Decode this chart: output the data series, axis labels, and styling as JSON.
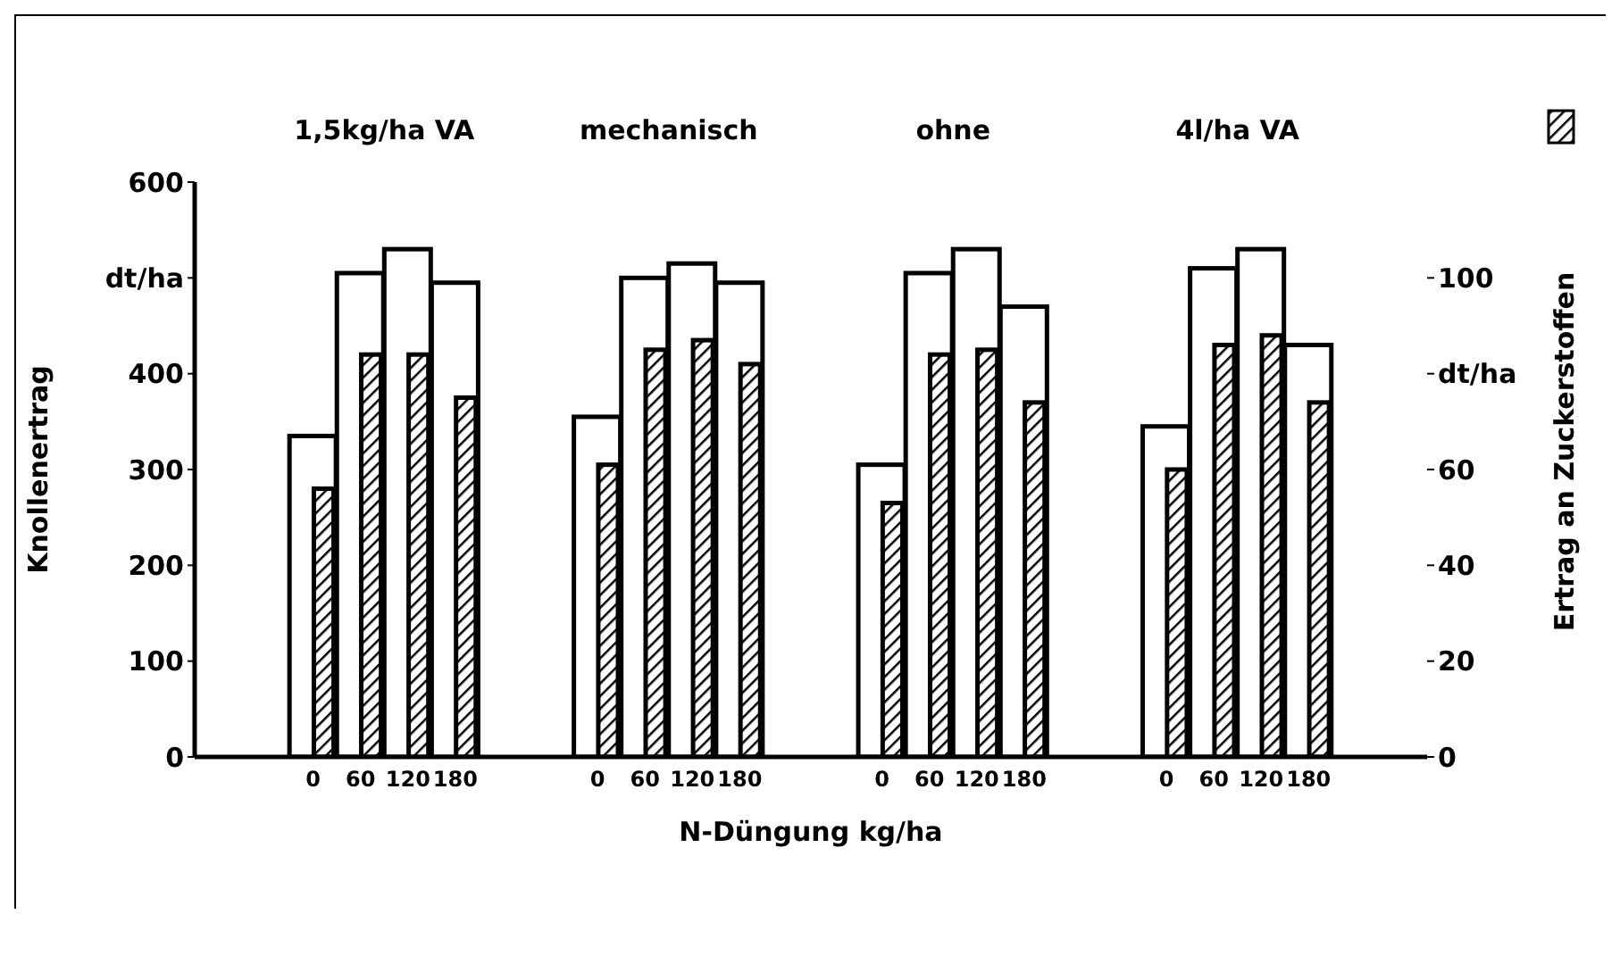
{
  "chart_data": {
    "type": "bar",
    "xlabel": "N-Düngung kg/ha",
    "ylabel": "Knollenertrag",
    "y2label": "Ertrag an Zuckerstoffen",
    "categories": [
      null,
      null,
      "0",
      "60",
      "120",
      "180",
      null,
      null,
      "0",
      "60",
      "120",
      "180",
      null,
      null,
      "0",
      "60",
      "120",
      "180",
      null,
      null,
      "0",
      "60",
      "120",
      "180",
      null,
      null
    ],
    "series": [
      {
        "color": "#ffffff",
        "values": [
          null,
          null,
          335,
          505,
          530,
          495,
          null,
          null,
          355,
          500,
          515,
          495,
          null,
          null,
          305,
          505,
          530,
          470,
          null,
          null,
          345,
          510,
          530,
          430,
          null,
          null
        ]
      },
      {
        "color": "#000000",
        "axis": "y2",
        "values": [
          null,
          null,
          56,
          84,
          84,
          75,
          null,
          null,
          61,
          85,
          87,
          82,
          null,
          null,
          53,
          84,
          85,
          74,
          null,
          null,
          60,
          86,
          88,
          74,
          null,
          null
        ]
      }
    ],
    "annotations": [
      "1,5kg/ha VA",
      "mechanisch",
      "ohne",
      "4l/ha VA"
    ],
    "ylim": [
      0,
      600
    ],
    "yticks": [
      0,
      100,
      200,
      300,
      400,
      {
        "value": 500,
        "label": "dt/ha"
      },
      600
    ],
    "y2lim": [
      0,
      120
    ],
    "y2ticks": [
      0,
      20,
      40,
      60,
      {
        "value": 80,
        "label": "dt/ha"
      },
      100
    ],
    "grid": false
  }
}
